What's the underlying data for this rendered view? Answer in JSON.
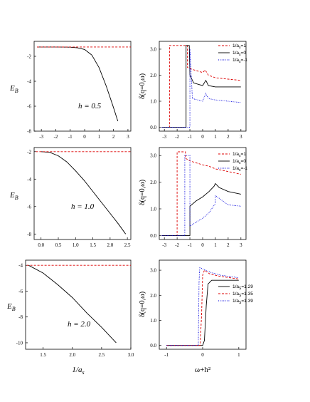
{
  "chart_data": [
    {
      "id": "p1",
      "type": "line",
      "ylabel": "E_B",
      "annotation": "h = 0.5",
      "xlim": [
        -3.5,
        3.2
      ],
      "ylim": [
        -8,
        -0.8
      ],
      "xticks": [
        -3,
        -2,
        -1,
        0,
        1,
        2,
        3
      ],
      "yticks": [
        -2,
        -4,
        -6,
        -8
      ],
      "series": [
        {
          "style": "solid",
          "color": "#000000",
          "x": [
            -3.3,
            -2,
            -1,
            -0.5,
            0,
            0.5,
            1,
            1.5,
            2,
            2.3
          ],
          "y": [
            -1.25,
            -1.25,
            -1.27,
            -1.32,
            -1.45,
            -1.9,
            -2.9,
            -4.4,
            -6.1,
            -7.2
          ]
        },
        {
          "style": "dashed",
          "color": "#dd0000",
          "x": [
            -3.3,
            3.2
          ],
          "y": [
            -1.25,
            -1.25
          ]
        }
      ]
    },
    {
      "id": "p2",
      "type": "line",
      "ylabel": "δ(q=0,ω)",
      "xlim": [
        -3.4,
        3.4
      ],
      "ylim": [
        -0.15,
        3.3
      ],
      "xticks": [
        -3,
        -2,
        -1,
        0,
        1,
        2,
        3
      ],
      "yticks": [
        "0.0",
        "1.0",
        "2.0",
        "3.0"
      ],
      "legend": [
        "1/a_s=1",
        "1/a_s=0",
        "1/a_s=-1"
      ],
      "series": [
        {
          "name": "1/a_s=1",
          "style": "dashed",
          "color": "#dd0000",
          "x": [
            -3.2,
            -2.6,
            -2.6,
            -1.2,
            -1.2,
            -1.0,
            0,
            0.2,
            0.45,
            1,
            2,
            3
          ],
          "y": [
            0,
            0,
            3.14,
            3.14,
            2.3,
            2.25,
            2.1,
            2.2,
            2.0,
            1.9,
            1.85,
            1.8
          ]
        },
        {
          "name": "1/a_s=0",
          "style": "solid",
          "color": "#000000",
          "x": [
            -3.2,
            -1.3,
            -1.3,
            -1.05,
            -1.0,
            -0.7,
            0,
            0.25,
            0.45,
            1,
            2,
            3
          ],
          "y": [
            0,
            0,
            3.14,
            3.14,
            2.0,
            1.7,
            1.6,
            1.8,
            1.6,
            1.55,
            1.55,
            1.55
          ]
        },
        {
          "name": "1/a_s=-1",
          "style": "dotted",
          "color": "#0000dd",
          "x": [
            -3.2,
            -1.0,
            -1.0,
            -0.8,
            0,
            0.25,
            0.45,
            1,
            2,
            3
          ],
          "y": [
            0,
            0,
            3.0,
            1.1,
            1.0,
            1.3,
            1.1,
            1.05,
            1.0,
            0.95
          ]
        }
      ]
    },
    {
      "id": "p3",
      "type": "line",
      "ylabel": "E_B",
      "annotation": "h = 1.0",
      "xlim": [
        -0.2,
        2.6
      ],
      "ylim": [
        -8.4,
        -1.7
      ],
      "xticks": [
        "0.0",
        "0.5",
        "1.0",
        "1.5",
        "2.0",
        "2.5"
      ],
      "yticks": [
        -2,
        -4,
        -6,
        -8
      ],
      "series": [
        {
          "style": "solid",
          "color": "#000000",
          "x": [
            0,
            0.25,
            0.5,
            0.75,
            1,
            1.25,
            1.5,
            1.75,
            2,
            2.25,
            2.45
          ],
          "y": [
            -2.0,
            -2.05,
            -2.3,
            -2.75,
            -3.4,
            -4.1,
            -4.9,
            -5.7,
            -6.5,
            -7.3,
            -8.0
          ]
        },
        {
          "style": "dashed",
          "color": "#dd0000",
          "x": [
            -0.15,
            2.6
          ],
          "y": [
            -2.0,
            -2.0
          ]
        }
      ]
    },
    {
      "id": "p4",
      "type": "line",
      "ylabel": "δ(q=0,ω)",
      "xlim": [
        -3.4,
        3.4
      ],
      "ylim": [
        -0.15,
        3.3
      ],
      "xticks": [
        -3,
        -2,
        -1,
        0,
        1,
        2,
        3
      ],
      "yticks": [
        "0.0",
        "1.0",
        "2.0",
        "3.0"
      ],
      "legend": [
        "1/a_s=1",
        "1/a_s=0",
        "1/a_s=-1"
      ],
      "series": [
        {
          "name": "1/a_s=1",
          "style": "dashed",
          "color": "#dd0000",
          "x": [
            -3.2,
            -2.0,
            -2.0,
            -1.35,
            -1.35,
            -1.0,
            0,
            0.5,
            1,
            2,
            3
          ],
          "y": [
            0,
            0,
            3.14,
            3.14,
            2.9,
            2.8,
            2.65,
            2.6,
            2.5,
            2.4,
            2.3
          ]
        },
        {
          "name": "1/a_s=0",
          "style": "solid",
          "color": "#000000",
          "x": [
            -3.2,
            -1.0,
            -1.0,
            -0.5,
            0,
            0.5,
            0.9,
            1.0,
            1.3,
            2,
            3
          ],
          "y": [
            0,
            0,
            1.1,
            1.3,
            1.45,
            1.65,
            1.85,
            1.95,
            1.8,
            1.65,
            1.55
          ]
        },
        {
          "name": "1/a_s=-1",
          "style": "dotted",
          "color": "#0000dd",
          "x": [
            -3.2,
            -1.4,
            -1.4,
            -1.0,
            -1.0,
            -0.5,
            0,
            0.5,
            1.0,
            1.0,
            2,
            3
          ],
          "y": [
            0,
            0,
            3.0,
            3.0,
            0.35,
            0.5,
            0.65,
            0.85,
            1.2,
            1.5,
            1.15,
            1.1
          ]
        }
      ]
    },
    {
      "id": "p5",
      "type": "line",
      "ylabel": "E_B",
      "xlabel": "1/a_s",
      "annotation": "h = 2.0",
      "xlim": [
        1.2,
        3.0
      ],
      "ylim": [
        -10.5,
        -3.6
      ],
      "xticks": [
        "1.5",
        "2.0",
        "2.5",
        "3.0"
      ],
      "yticks": [
        -4,
        -6,
        -8,
        -10
      ],
      "series": [
        {
          "style": "solid",
          "color": "#000000",
          "x": [
            1.25,
            1.5,
            1.75,
            2,
            2.25,
            2.5,
            2.75
          ],
          "y": [
            -4.0,
            -4.6,
            -5.5,
            -6.5,
            -7.7,
            -8.8,
            -10.0
          ]
        },
        {
          "style": "dashed",
          "color": "#dd0000",
          "x": [
            1.22,
            3.0
          ],
          "y": [
            -4.0,
            -4.0
          ]
        }
      ]
    },
    {
      "id": "p6",
      "type": "line",
      "ylabel": "δ(q=0,ω)",
      "xlabel": "ω+h²",
      "xlim": [
        -1.2,
        1.2
      ],
      "ylim": [
        -0.15,
        3.4
      ],
      "xticks": [
        -1,
        0,
        1
      ],
      "yticks": [
        "0.0",
        "1.0",
        "2.0",
        "3.0"
      ],
      "legend": [
        "1/a_S=1.29",
        "1/a_S=1.35",
        "1/a_S=1.39"
      ],
      "series": [
        {
          "name": "1/a_S=1.29",
          "style": "solid",
          "color": "#000000",
          "x": [
            -1.0,
            0.0,
            0.05,
            0.1,
            0.15,
            0.25,
            0.5,
            0.75,
            1.0
          ],
          "y": [
            0,
            0,
            0.2,
            1.6,
            2.45,
            2.6,
            2.6,
            2.6,
            2.6
          ]
        },
        {
          "name": "1/a_S=1.35",
          "style": "dashed",
          "color": "#dd0000",
          "x": [
            -1.0,
            -0.07,
            -0.03,
            0.0,
            0.05,
            0.2,
            0.5,
            0.75,
            1.0
          ],
          "y": [
            0,
            0,
            1.2,
            2.8,
            3.0,
            2.85,
            2.75,
            2.7,
            2.65
          ]
        },
        {
          "name": "1/a_S=1.39",
          "style": "dotted",
          "color": "#0000dd",
          "x": [
            -1.0,
            -0.12,
            -0.1,
            -0.08,
            0.0,
            0.25,
            0.5,
            0.75,
            1.0
          ],
          "y": [
            0,
            0,
            2.5,
            3.1,
            3.05,
            2.9,
            2.8,
            2.75,
            2.7
          ]
        }
      ]
    }
  ]
}
